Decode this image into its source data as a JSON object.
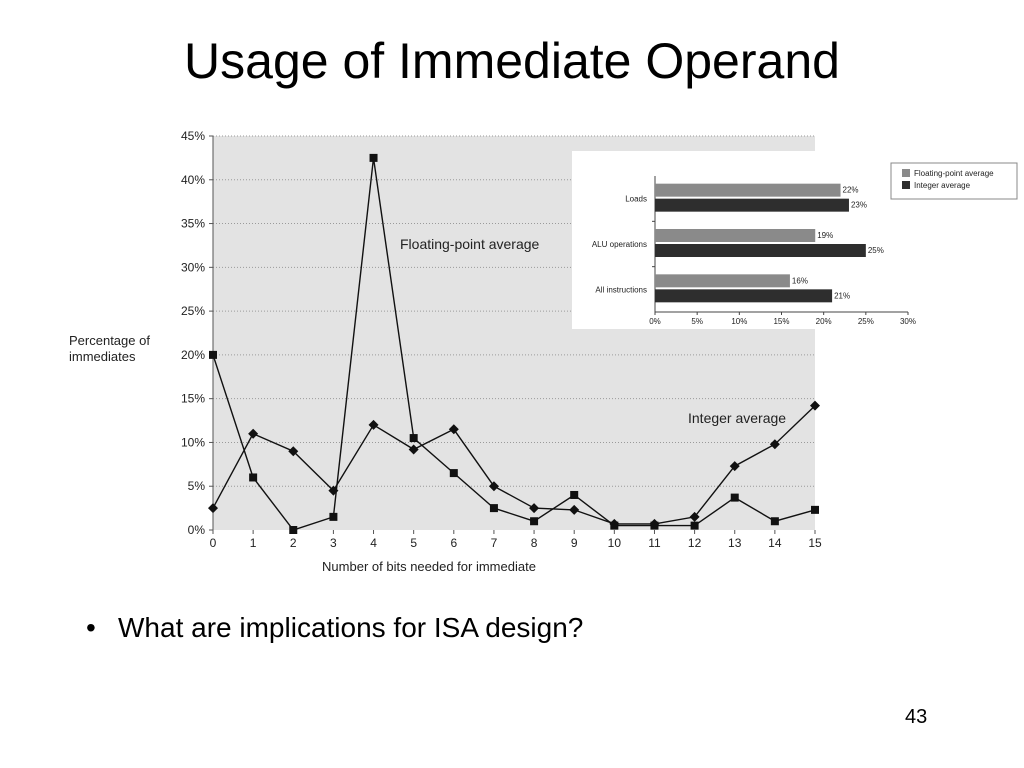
{
  "slide": {
    "title": "Usage of Immediate Operand",
    "bullet": "What are implications for ISA design?",
    "page_number": "43"
  },
  "chart_data": [
    {
      "type": "line",
      "x": [
        0,
        1,
        2,
        3,
        4,
        5,
        6,
        7,
        8,
        9,
        10,
        11,
        12,
        13,
        14,
        15
      ],
      "series": [
        {
          "name": "Floating-point average",
          "marker": "square",
          "values": [
            20,
            6,
            0,
            1.5,
            42.5,
            10.5,
            6.5,
            2.5,
            1,
            4,
            0.5,
            0.5,
            0.5,
            3.7,
            1,
            2.3
          ]
        },
        {
          "name": "Integer average",
          "marker": "diamond",
          "values": [
            2.5,
            11,
            9,
            4.5,
            12,
            9.2,
            11.5,
            5,
            2.5,
            2.3,
            0.7,
            0.7,
            1.5,
            7.3,
            9.8,
            14.2
          ]
        }
      ],
      "xlabel": "Number of bits needed for immediate",
      "ylabel_lines": [
        "Percentage of",
        "immediates"
      ],
      "xticks": [
        "0",
        "1",
        "2",
        "3",
        "4",
        "5",
        "6",
        "7",
        "8",
        "9",
        "10",
        "11",
        "12",
        "13",
        "14",
        "15"
      ],
      "yticks": [
        "0%",
        "5%",
        "10%",
        "15%",
        "20%",
        "25%",
        "30%",
        "35%",
        "40%",
        "45%"
      ],
      "ylim": [
        0,
        45
      ],
      "grid": "horizontal dotted",
      "background": "#e3e3e3"
    },
    {
      "type": "bar",
      "orientation": "horizontal",
      "categories": [
        "Loads",
        "ALU operations",
        "All instructions"
      ],
      "series": [
        {
          "name": "Floating-point average",
          "values": [
            22,
            19,
            16
          ],
          "color": "#8a8a8a"
        },
        {
          "name": "Integer average",
          "values": [
            23,
            25,
            21
          ],
          "color": "#2e2e2e"
        }
      ],
      "data_labels": [
        [
          "22%",
          "19%",
          "16%"
        ],
        [
          "23%",
          "25%",
          "21%"
        ]
      ],
      "xticks": [
        "0%",
        "5%",
        "10%",
        "15%",
        "20%",
        "25%",
        "30%"
      ],
      "xlim": [
        0,
        30
      ],
      "legend_position": "right"
    }
  ]
}
